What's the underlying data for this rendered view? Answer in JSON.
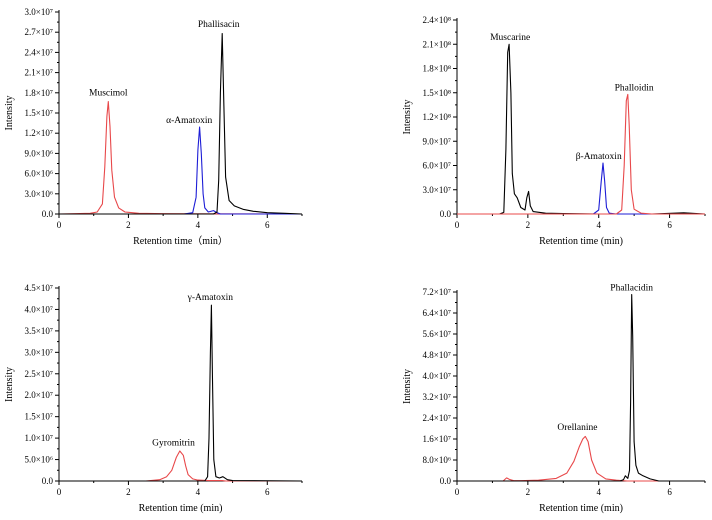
{
  "colors": {
    "black": "#000000",
    "red": "#e8484a",
    "blue": "#1d1dd6"
  },
  "chart_data": [
    {
      "type": "line",
      "xlabel": "Retention time（min）",
      "ylabel": "Intensity",
      "xlim": [
        0,
        7
      ],
      "ylim": [
        0,
        30000000
      ],
      "x_ticks": [
        0,
        2,
        4,
        6
      ],
      "y_ticks": [
        {
          "value": 0,
          "label": "0.0"
        },
        {
          "value": 3000000,
          "label": "3.0×10⁶"
        },
        {
          "value": 6000000,
          "label": "6.0×10⁶"
        },
        {
          "value": 9000000,
          "label": "9.0×10⁶"
        },
        {
          "value": 12000000,
          "label": "1.2×10⁷"
        },
        {
          "value": 15000000,
          "label": "1.5×10⁷"
        },
        {
          "value": 18000000,
          "label": "1.8×10⁷"
        },
        {
          "value": 21000000,
          "label": "2.1×10⁷"
        },
        {
          "value": 24000000,
          "label": "2.4×10⁷"
        },
        {
          "value": 27000000,
          "label": "2.7×10⁷"
        },
        {
          "value": 30000000,
          "label": "3.0×10⁷"
        }
      ],
      "series": [
        {
          "name": "Muscimol",
          "color": "#e8484a",
          "x": [
            0,
            0.9,
            1.1,
            1.25,
            1.32,
            1.38,
            1.42,
            1.47,
            1.52,
            1.6,
            1.72,
            1.9,
            2.3,
            3.0,
            4.0,
            7
          ],
          "y": [
            0,
            100000,
            300000,
            1500000,
            7000000,
            14500000,
            16700000,
            13000000,
            6500000,
            2500000,
            900000,
            300000,
            100000,
            50000,
            30000,
            0
          ],
          "label_at": [
            1.42,
            17600000
          ]
        },
        {
          "name": "α-Amatoxin",
          "color": "#1d1dd6",
          "x": [
            0,
            3.6,
            3.85,
            3.95,
            4.0,
            4.05,
            4.1,
            4.15,
            4.2,
            4.3,
            4.45,
            4.55,
            4.65,
            7
          ],
          "y": [
            0,
            0,
            200000,
            2500000,
            9500000,
            12900000,
            9000000,
            3000000,
            900000,
            300000,
            500000,
            200000,
            0,
            0
          ],
          "label_at": [
            3.75,
            13500000
          ]
        },
        {
          "name": "Phallisacin",
          "color": "#000000",
          "x": [
            0,
            4.45,
            4.55,
            4.6,
            4.65,
            4.7,
            4.75,
            4.8,
            4.9,
            5.05,
            5.3,
            5.6,
            6.0,
            6.5,
            7
          ],
          "y": [
            0,
            0,
            300000,
            5000000,
            18000000,
            26800000,
            16000000,
            5500000,
            2000000,
            1200000,
            700000,
            400000,
            200000,
            100000,
            0
          ],
          "label_at": [
            4.6,
            27800000
          ]
        }
      ]
    },
    {
      "type": "line",
      "xlabel": "Retention time (min)",
      "ylabel": "Intensity",
      "xlim": [
        0,
        7
      ],
      "ylim": [
        0,
        240000000
      ],
      "x_ticks": [
        0,
        2,
        4,
        6
      ],
      "y_ticks": [
        {
          "value": 0,
          "label": "0.0"
        },
        {
          "value": 30000000,
          "label": "3.0×10⁷"
        },
        {
          "value": 60000000,
          "label": "6.0×10⁷"
        },
        {
          "value": 90000000,
          "label": "9.0×10⁷"
        },
        {
          "value": 120000000,
          "label": "1.2×10⁸"
        },
        {
          "value": 150000000,
          "label": "1.5×10⁸"
        },
        {
          "value": 180000000,
          "label": "1.8×10⁸"
        },
        {
          "value": 210000000,
          "label": "2.1×10⁸"
        },
        {
          "value": 240000000,
          "label": "2.4×10⁸"
        }
      ],
      "series": [
        {
          "name": "Muscarine",
          "color": "#000000",
          "x": [
            0,
            1.2,
            1.32,
            1.38,
            1.43,
            1.47,
            1.52,
            1.56,
            1.62,
            1.7,
            1.8,
            1.92,
            1.97,
            2.02,
            2.07,
            2.15,
            2.5,
            3.0,
            4.0,
            5.0,
            5.5,
            6.4,
            7
          ],
          "y": [
            0,
            0,
            2000000,
            80000000,
            200000000,
            210000000,
            150000000,
            50000000,
            25000000,
            20000000,
            8000000,
            5000000,
            20000000,
            28000000,
            10000000,
            3000000,
            1000000,
            500000,
            0,
            0,
            0,
            1500000,
            0
          ],
          "label_at": [
            1.5,
            215000000
          ]
        },
        {
          "name": "β-Amatoxin",
          "color": "#1d1dd6",
          "x": [
            0,
            3.85,
            4.0,
            4.07,
            4.12,
            4.17,
            4.22,
            4.3,
            4.5,
            7
          ],
          "y": [
            0,
            0,
            5000000,
            40000000,
            63000000,
            40000000,
            8000000,
            1000000,
            0,
            0
          ],
          "label_at": [
            4.0,
            68000000
          ]
        },
        {
          "name": "Phalloidin",
          "color": "#e8484a",
          "x": [
            0,
            4.5,
            4.65,
            4.72,
            4.78,
            4.82,
            4.86,
            4.92,
            5.0,
            5.2,
            5.5,
            7
          ],
          "y": [
            0,
            0,
            5000000,
            60000000,
            140000000,
            148000000,
            110000000,
            30000000,
            6000000,
            1000000,
            0,
            0
          ],
          "label_at": [
            5.0,
            153000000
          ]
        }
      ]
    },
    {
      "type": "line",
      "xlabel": "Retention time (min)",
      "ylabel": "Intensity",
      "xlim": [
        0,
        7
      ],
      "ylim": [
        0,
        45000000
      ],
      "x_ticks": [
        0,
        2,
        4,
        6
      ],
      "y_ticks": [
        {
          "value": 0,
          "label": "0.0"
        },
        {
          "value": 5000000,
          "label": "5.0×10⁶"
        },
        {
          "value": 10000000,
          "label": "1.0×10⁷"
        },
        {
          "value": 15000000,
          "label": "1.5×10⁷"
        },
        {
          "value": 20000000,
          "label": "2.0×10⁷"
        },
        {
          "value": 25000000,
          "label": "2.5×10⁷"
        },
        {
          "value": 30000000,
          "label": "3.0×10⁷"
        },
        {
          "value": 35000000,
          "label": "3.5×10⁷"
        },
        {
          "value": 40000000,
          "label": "4.0×10⁷"
        },
        {
          "value": 45000000,
          "label": "4.5×10⁷"
        }
      ],
      "series": [
        {
          "name": "Gyromitrin",
          "color": "#e8484a",
          "x": [
            0,
            2.5,
            2.9,
            3.1,
            3.25,
            3.38,
            3.48,
            3.58,
            3.65,
            3.72,
            3.85,
            4.0,
            4.3,
            4.7,
            4.8,
            5.0,
            7
          ],
          "y": [
            0,
            0,
            300000,
            1000000,
            2500000,
            5500000,
            7000000,
            6000000,
            3500000,
            1500000,
            500000,
            200000,
            100000,
            100000,
            0,
            0,
            0
          ],
          "label_at": [
            3.3,
            8300000
          ]
        },
        {
          "name": "γ-Amatoxin",
          "color": "#000000",
          "x": [
            0,
            4.2,
            4.28,
            4.32,
            4.36,
            4.39,
            4.42,
            4.46,
            4.52,
            4.62,
            4.72,
            4.85,
            5.0,
            7
          ],
          "y": [
            0,
            0,
            1000000,
            10000000,
            30000000,
            41000000,
            25000000,
            5000000,
            1000000,
            700000,
            1000000,
            300000,
            100000,
            0
          ],
          "label_at": [
            4.36,
            42200000
          ]
        }
      ]
    },
    {
      "type": "line",
      "xlabel": "Retention time (min)",
      "ylabel": "Intensity",
      "xlim": [
        0,
        7
      ],
      "ylim": [
        0,
        72000000
      ],
      "x_ticks": [
        0,
        2,
        4,
        6
      ],
      "y_ticks": [
        {
          "value": 0,
          "label": "0.0"
        },
        {
          "value": 8000000,
          "label": "8.0×10⁶"
        },
        {
          "value": 16000000,
          "label": "1.6×10⁷"
        },
        {
          "value": 24000000,
          "label": "2.4×10⁷"
        },
        {
          "value": 32000000,
          "label": "3.2×10⁷"
        },
        {
          "value": 40000000,
          "label": "4.0×10⁷"
        },
        {
          "value": 48000000,
          "label": "4.8×10⁷"
        },
        {
          "value": 56000000,
          "label": "5.6×10⁷"
        },
        {
          "value": 64000000,
          "label": "6.4×10⁷"
        },
        {
          "value": 72000000,
          "label": "7.2×10⁷"
        }
      ],
      "series": [
        {
          "name": "Orellanine",
          "color": "#e8484a",
          "x": [
            0,
            1.3,
            1.4,
            1.48,
            1.6,
            1.8,
            2.3,
            2.8,
            3.1,
            3.3,
            3.45,
            3.55,
            3.62,
            3.7,
            3.8,
            3.95,
            4.2,
            4.5,
            4.8,
            7
          ],
          "y": [
            0,
            0,
            1200000,
            600000,
            100000,
            100000,
            300000,
            1000000,
            3000000,
            7500000,
            13000000,
            16000000,
            17000000,
            15000000,
            8000000,
            3000000,
            800000,
            300000,
            0,
            0
          ],
          "label_at": [
            3.4,
            19500000
          ]
        },
        {
          "name": "Phallacidin",
          "color": "#000000",
          "x": [
            0,
            4.6,
            4.7,
            4.75,
            4.82,
            4.87,
            4.9,
            4.93,
            4.96,
            5.0,
            5.05,
            5.12,
            5.25,
            5.45,
            5.7,
            7
          ],
          "y": [
            0,
            0,
            500000,
            2000000,
            1000000,
            4000000,
            30000000,
            71000000,
            55000000,
            15000000,
            6000000,
            3000000,
            2000000,
            800000,
            0,
            0
          ],
          "label_at": [
            4.93,
            72500000
          ]
        }
      ]
    }
  ]
}
